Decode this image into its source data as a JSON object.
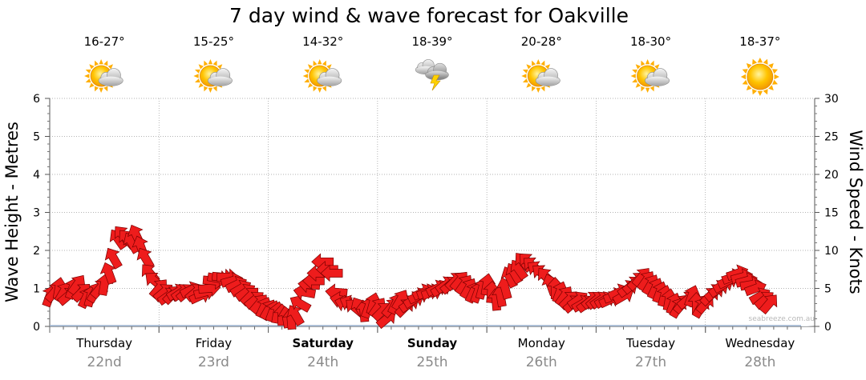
{
  "colors": {
    "arrow_fill": "#ee1c1c",
    "arrow_stroke": "#7a0000",
    "wave_line": "#8fa8c6",
    "wave_fill": "#e6edf5",
    "grid": "#9a9a9a",
    "sun": "#ffb800",
    "cloud": "#c8c8c8"
  },
  "chart_data": {
    "type": "line",
    "title": "7 day wind & wave forecast for Oakville",
    "ylabel_left": "Wave Height - Metres",
    "ylabel_right": "Wind Speed - Knots",
    "ylim_left": [
      0,
      6
    ],
    "ylim_right": [
      0,
      30
    ],
    "yticks_left": [
      "0",
      "1",
      "2",
      "3",
      "4",
      "5",
      "6"
    ],
    "yticks_right": [
      "0",
      "5",
      "10",
      "15",
      "20",
      "25",
      "30"
    ],
    "grid": true,
    "watermark": "seabreeze.com.au",
    "days": [
      {
        "name": "Thursday",
        "date": "22nd",
        "temp": "16-27°",
        "icon": "partly-cloudy-icon",
        "bold": false
      },
      {
        "name": "Friday",
        "date": "23rd",
        "temp": "15-25°",
        "icon": "partly-cloudy-icon",
        "bold": false
      },
      {
        "name": "Saturday",
        "date": "24th",
        "temp": "14-32°",
        "icon": "partly-cloudy-icon",
        "bold": true
      },
      {
        "name": "Sunday",
        "date": "25th",
        "temp": "18-39°",
        "icon": "thunderstorm-icon",
        "bold": true
      },
      {
        "name": "Monday",
        "date": "26th",
        "temp": "20-28°",
        "icon": "partly-cloudy-icon",
        "bold": false
      },
      {
        "name": "Tuesday",
        "date": "27th",
        "temp": "18-30°",
        "icon": "partly-cloudy-icon",
        "bold": false
      },
      {
        "name": "Wednesday",
        "date": "28th",
        "temp": "18-37°",
        "icon": "sunny-icon",
        "bold": false
      }
    ],
    "series": [
      {
        "name": "Wave Height",
        "units": "m",
        "axis": "left",
        "hours_step": 3,
        "values": [
          0.02,
          0.02,
          0.02,
          0.02,
          0.02,
          0.02,
          0.02,
          0.02,
          0.02,
          0.02,
          0.02,
          0.02,
          0.02,
          0.02,
          0.02,
          0.02,
          0.02,
          0.02,
          0.02,
          0.02,
          0.02,
          0.02,
          0.02,
          0.02,
          0.02,
          0.02,
          0.02,
          0.02,
          0.02,
          0.02,
          0.02,
          0.02,
          0.02,
          0.02,
          0.02,
          0.02,
          0.02,
          0.02,
          0.02,
          0.02,
          0.02,
          0.02,
          0.02,
          0.02,
          0.02,
          0.02,
          0.02,
          0.02,
          0.02,
          0.02,
          0.02,
          0.02,
          0.02,
          0.02,
          0.02,
          0.02
        ]
      },
      {
        "name": "Wind Speed",
        "units": "knots",
        "axis": "right",
        "hours_step": 1,
        "values": [
          4,
          4.5,
          5,
          4.5,
          4,
          5,
          5.5,
          4.5,
          3.8,
          4,
          4.5,
          5,
          5.5,
          7,
          9,
          11.5,
          12,
          11.5,
          11,
          12,
          10.5,
          9,
          7,
          6,
          5,
          4.5,
          4,
          4.2,
          4.5,
          4.5,
          4.5,
          4.8,
          4.5,
          4,
          4.5,
          5,
          6,
          6.3,
          6.5,
          6.5,
          6,
          5.5,
          5,
          4.5,
          4,
          3.5,
          3,
          2.5,
          2.2,
          2,
          1.8,
          1.5,
          1.2,
          1,
          1.5,
          3,
          4.5,
          5.5,
          6,
          7,
          8.5,
          7.5,
          7,
          4.5,
          3.5,
          3,
          3,
          2.5,
          2.5,
          2,
          2.5,
          3,
          2.5,
          2,
          1,
          2.5,
          3,
          3.5,
          2.5,
          3,
          3.5,
          4,
          4.5,
          4.5,
          4.5,
          5,
          5,
          5.5,
          5.5,
          6,
          6,
          5.5,
          5,
          4.5,
          4.5,
          5,
          5.5,
          4.5,
          3.5,
          4,
          5,
          6.5,
          7,
          7.5,
          8.5,
          8.5,
          8,
          7.5,
          7,
          6.5,
          5.5,
          5,
          4.5,
          4,
          3.5,
          3,
          3.5,
          3,
          3,
          3.5,
          3.5,
          3.5,
          3.5,
          3.5,
          4,
          4.5,
          4,
          5,
          5.5,
          6,
          6.5,
          6,
          5.5,
          5,
          4.5,
          4,
          3.5,
          3,
          2.5,
          3,
          3.5,
          4,
          3,
          2.5,
          3,
          4,
          4.5,
          5,
          5.5,
          6,
          6.5,
          7,
          6.5,
          6,
          5.5,
          5,
          4,
          3.5,
          3
        ]
      }
    ],
    "wind_direction_deg": [
      200,
      220,
      190,
      210,
      230,
      200,
      215,
      225,
      205,
      195,
      210,
      220,
      190,
      160,
      150,
      145,
      140,
      140,
      150,
      155,
      160,
      150,
      140,
      130,
      220,
      230,
      235,
      225,
      240,
      235,
      230,
      245,
      230,
      245,
      255,
      265,
      275,
      280,
      275,
      270,
      255,
      245,
      240,
      235,
      225,
      230,
      220,
      205,
      210,
      200,
      190,
      180,
      170,
      175,
      150,
      120,
      100,
      95,
      90,
      90,
      90,
      90,
      90,
      95,
      100,
      105,
      115,
      130,
      150,
      175,
      200,
      195,
      215,
      225,
      230,
      220,
      205,
      210,
      225,
      235,
      240,
      245,
      245,
      250,
      250,
      245,
      240,
      235,
      230,
      225,
      220,
      215,
      210,
      205,
      200,
      195,
      190,
      185,
      175,
      170,
      165,
      155,
      150,
      145,
      140,
      135,
      130,
      125,
      130,
      140,
      160,
      180,
      200,
      215,
      225,
      230,
      235,
      240,
      235,
      230,
      230,
      235,
      240,
      245,
      250,
      245,
      240,
      235,
      230,
      225,
      220,
      215,
      210,
      205,
      200,
      195,
      190,
      200,
      210,
      220,
      230,
      200,
      180,
      210,
      220,
      225,
      230,
      235,
      240,
      245,
      250,
      250,
      255,
      255,
      260,
      250,
      240,
      230,
      220
    ]
  }
}
